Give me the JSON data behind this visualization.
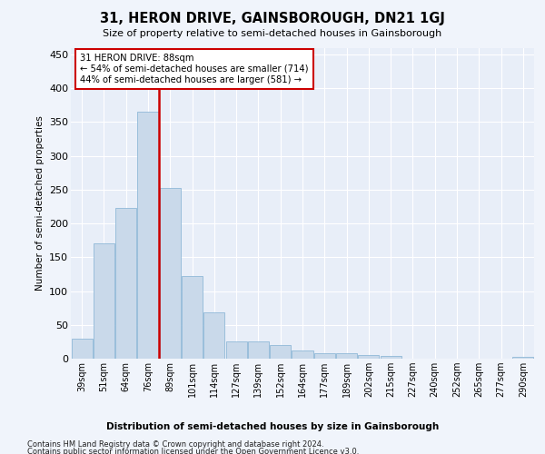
{
  "title": "31, HERON DRIVE, GAINSBOROUGH, DN21 1GJ",
  "subtitle": "Size of property relative to semi-detached houses in Gainsborough",
  "xlabel": "Distribution of semi-detached houses by size in Gainsborough",
  "ylabel": "Number of semi-detached properties",
  "property_label": "31 HERON DRIVE: 88sqm",
  "pct_smaller": 54,
  "count_smaller": 714,
  "pct_larger": 44,
  "count_larger": 581,
  "bar_color": "#c9d9ea",
  "bar_edge_color": "#90b8d8",
  "vline_color": "#cc0000",
  "annotation_box_color": "#cc0000",
  "categories": [
    "39sqm",
    "51sqm",
    "64sqm",
    "76sqm",
    "89sqm",
    "101sqm",
    "114sqm",
    "127sqm",
    "139sqm",
    "152sqm",
    "164sqm",
    "177sqm",
    "189sqm",
    "202sqm",
    "215sqm",
    "227sqm",
    "240sqm",
    "252sqm",
    "265sqm",
    "277sqm",
    "290sqm"
  ],
  "values": [
    30,
    170,
    223,
    365,
    252,
    122,
    68,
    25,
    25,
    20,
    12,
    8,
    8,
    5,
    4,
    0,
    0,
    0,
    0,
    0,
    3
  ],
  "ylim": [
    0,
    460
  ],
  "yticks": [
    0,
    50,
    100,
    150,
    200,
    250,
    300,
    350,
    400,
    450
  ],
  "vline_x": 3.5,
  "footer1": "Contains HM Land Registry data © Crown copyright and database right 2024.",
  "footer2": "Contains public sector information licensed under the Open Government Licence v3.0.",
  "bg_color": "#f0f4fb",
  "plot_bg_color": "#e8eef8"
}
